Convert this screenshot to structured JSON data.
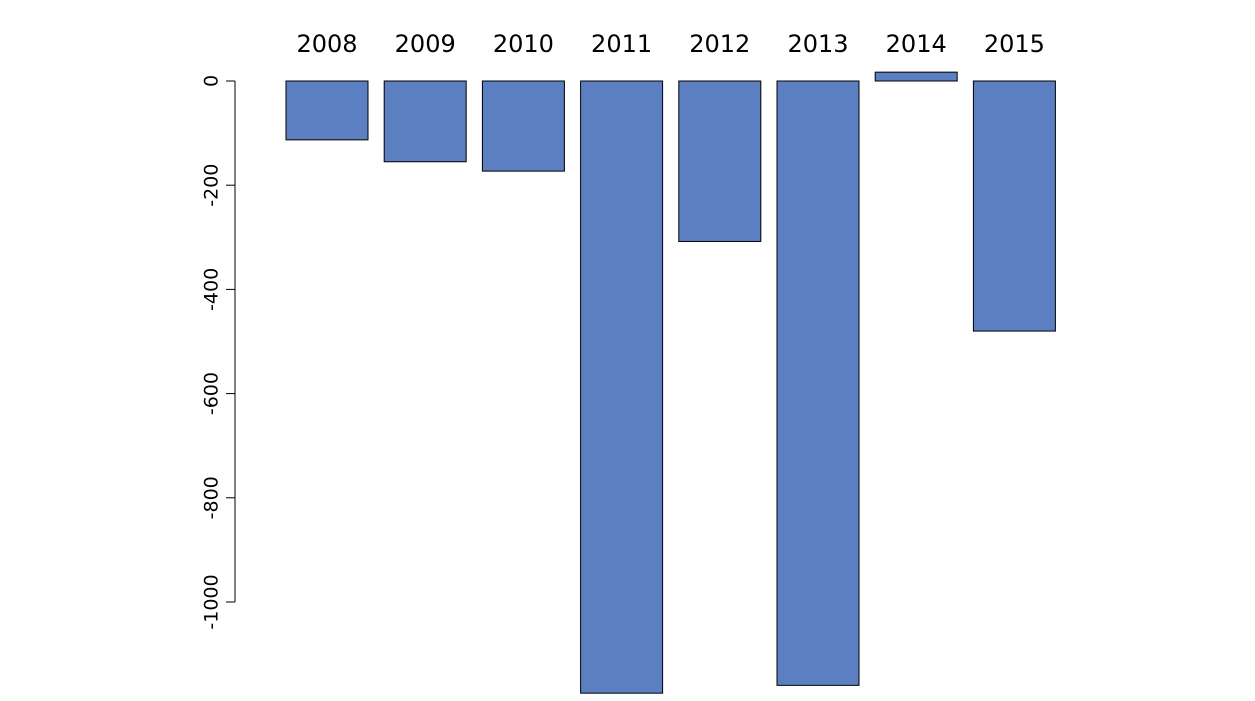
{
  "chart_data": {
    "type": "bar",
    "title": "",
    "xlabel": "",
    "ylabel": "",
    "categories": [
      "2008",
      "2009",
      "2010",
      "2011",
      "2012",
      "2013",
      "2014",
      "2015"
    ],
    "values": [
      -113,
      -155,
      -173,
      -1175,
      -308,
      -1160,
      17,
      -480
    ],
    "ylim": [
      -1175,
      17
    ],
    "yticks": [
      0,
      -200,
      -400,
      -600,
      -800,
      -1000
    ],
    "ytick_labels": [
      "0",
      "-200",
      "-400",
      "-600",
      "-800",
      "-1000"
    ],
    "category_labels_position": "top",
    "grid": false,
    "legend": "none",
    "bar_color": "#5b7fc0",
    "bar_border_color": "#000000"
  }
}
